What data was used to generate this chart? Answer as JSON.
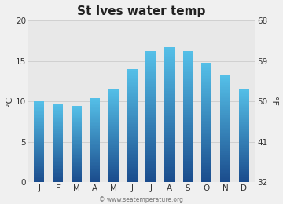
{
  "title": "St Ives water temp",
  "months": [
    "J",
    "F",
    "M",
    "A",
    "M",
    "J",
    "J",
    "A",
    "S",
    "O",
    "N",
    "D"
  ],
  "temps_c": [
    10.0,
    9.7,
    9.4,
    10.4,
    11.6,
    14.0,
    16.2,
    16.7,
    16.2,
    14.8,
    13.2,
    11.6
  ],
  "ylim_c": [
    0,
    20
  ],
  "yticks_c": [
    0,
    5,
    10,
    15,
    20
  ],
  "yticks_f": [
    32,
    41,
    50,
    59,
    68
  ],
  "ylabel_left": "°C",
  "ylabel_right": "°F",
  "bar_color_top": "#55c0e8",
  "bar_color_bottom": "#1a4b8c",
  "fig_bg_color": "#f0f0f0",
  "plot_bg_color": "#e8e8e8",
  "grid_color": "#d0d0d0",
  "watermark": "© www.seatemperature.org",
  "title_fontsize": 11,
  "axis_fontsize": 7.5,
  "label_fontsize": 8,
  "watermark_fontsize": 5.5
}
